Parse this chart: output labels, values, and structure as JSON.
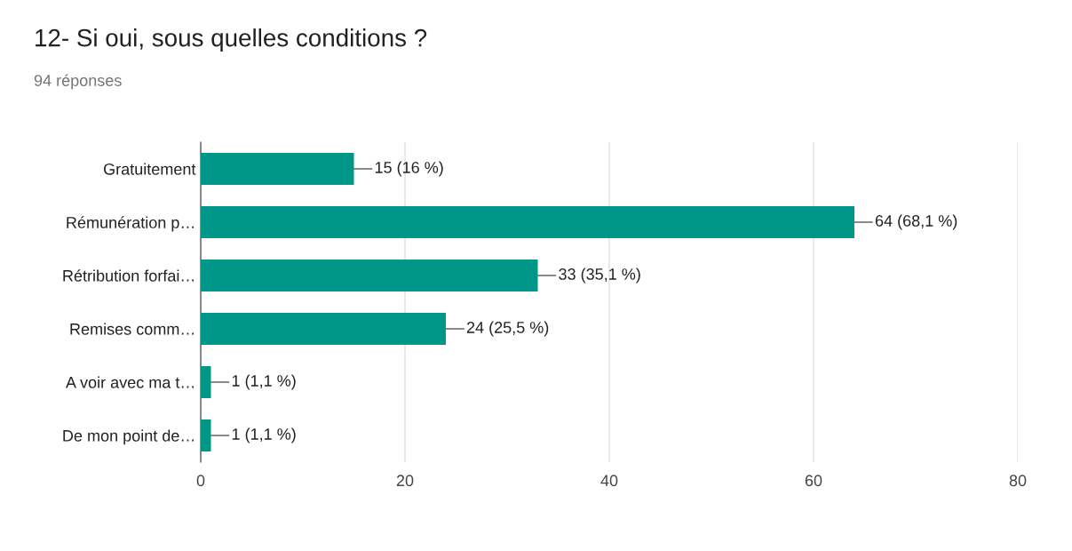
{
  "chart_data": {
    "type": "bar",
    "orientation": "horizontal",
    "title": "12- Si oui, sous quelles conditions ?",
    "subtitle": "94 réponses",
    "categories": [
      "Gratuitement",
      "Rémunération p…",
      "Rétribution forfai…",
      "Remises comm…",
      "A voir avec ma t…",
      "De mon point de…"
    ],
    "values": [
      15,
      64,
      33,
      24,
      1,
      1
    ],
    "value_labels": [
      "15 (16 %)",
      "64 (68,1 %)",
      "33 (35,1 %)",
      "24 (25,5 %)",
      "1 (1,1 %)",
      "1 (1,1 %)"
    ],
    "color": "#009688",
    "xlim": [
      0,
      80
    ],
    "xticks": [
      0,
      20,
      40,
      60,
      80
    ],
    "grid": "x"
  }
}
